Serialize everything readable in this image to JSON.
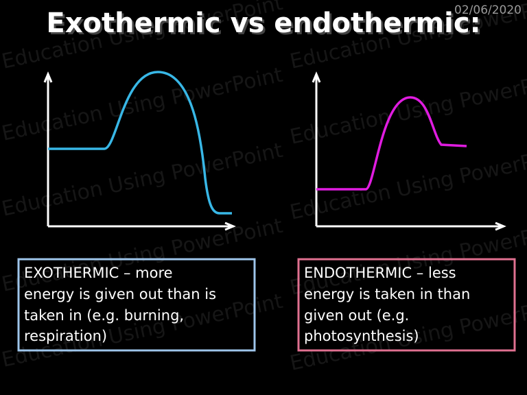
{
  "header": {
    "title": "Exothermic vs endothermic:",
    "date": "02/06/2020"
  },
  "watermark": "Education Using PowerPoint",
  "boxes": [
    {
      "lines": [
        "EXOTHERMIC – more",
        "energy is given out than is",
        "taken in (e.g. burning,",
        "respiration)"
      ]
    },
    {
      "lines": [
        "ENDOTHERMIC – less",
        "energy is taken in than",
        "given out (e.g.",
        "photosynthesis)"
      ]
    }
  ]
}
